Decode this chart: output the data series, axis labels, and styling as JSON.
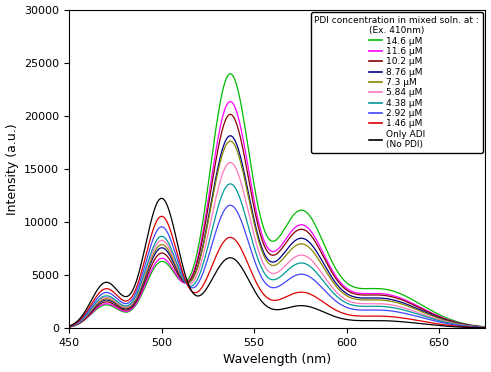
{
  "title": "PDI concentration in mixed soln. at :",
  "subtitle": "(Ex. 410nm)",
  "xlabel": "Wavelength (nm)",
  "ylabel": "Intensity (a.u.)",
  "xlim": [
    450,
    675
  ],
  "ylim": [
    0,
    30000
  ],
  "yticks": [
    0,
    5000,
    10000,
    15000,
    20000,
    25000,
    30000
  ],
  "xticks": [
    450,
    500,
    550,
    600,
    650
  ],
  "series": [
    {
      "label": "14.6 μM",
      "color": "#00bb00",
      "adi_peak": 6200,
      "pdi_peak": 23800,
      "pdi_sh": 10500
    },
    {
      "label": "11.6 μM",
      "color": "#ff00ff",
      "adi_peak": 6500,
      "pdi_peak": 21200,
      "pdi_sh": 9200
    },
    {
      "label": "10.2 μM",
      "color": "#880000",
      "adi_peak": 7000,
      "pdi_peak": 20000,
      "pdi_sh": 8800
    },
    {
      "label": "8.76 μM",
      "color": "#000088",
      "adi_peak": 7500,
      "pdi_peak": 18000,
      "pdi_sh": 8000
    },
    {
      "label": "7.3 μM",
      "color": "#888800",
      "adi_peak": 7800,
      "pdi_peak": 17500,
      "pdi_sh": 7500
    },
    {
      "label": "5.84 μM",
      "color": "#ff77bb",
      "adi_peak": 8200,
      "pdi_peak": 15500,
      "pdi_sh": 6500
    },
    {
      "label": "4.38 μM",
      "color": "#009999",
      "adi_peak": 8600,
      "pdi_peak": 13500,
      "pdi_sh": 5800
    },
    {
      "label": "2.92 μM",
      "color": "#4444ff",
      "adi_peak": 9500,
      "pdi_peak": 11500,
      "pdi_sh": 4800
    },
    {
      "label": "1.46 μM",
      "color": "#dd0000",
      "adi_peak": 10500,
      "pdi_peak": 8500,
      "pdi_sh": 3200
    },
    {
      "label": "Only ADI\n(No PDI)",
      "color": "#000000",
      "adi_peak": 12200,
      "pdi_peak": 6600,
      "pdi_sh": 2000
    }
  ],
  "background_color": "#ffffff"
}
